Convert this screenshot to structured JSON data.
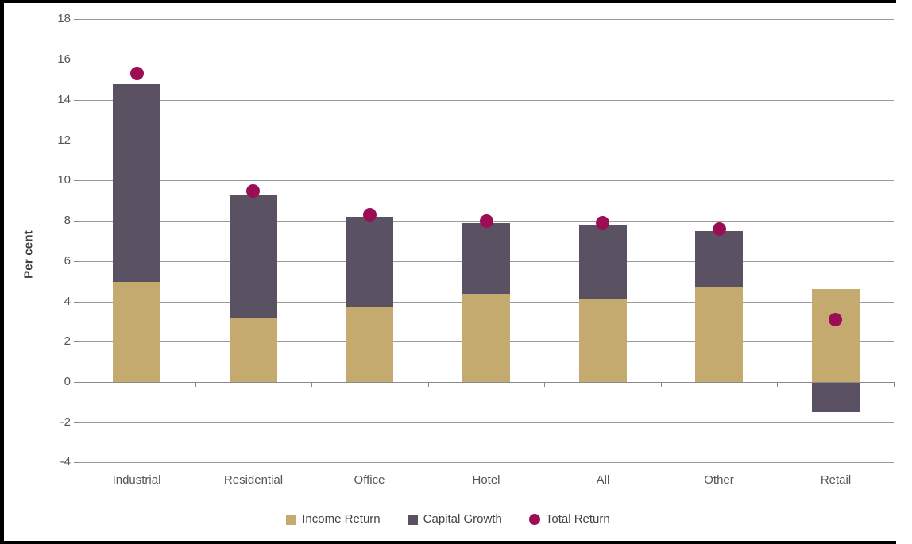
{
  "figure": {
    "y_axis_title": "Per cent",
    "border_color": "#000000",
    "background_color": "#ffffff",
    "gridline_color": "#9c9c9c",
    "axis_line_color": "#898989",
    "tick_label_color": "#555555"
  },
  "chart_data": {
    "type": "bar",
    "subtype": "stacked-bars-with-point-markers",
    "title": "",
    "xlabel": "",
    "ylabel": "Per cent",
    "categories": [
      "Industrial",
      "Residential",
      "Office",
      "Hotel",
      "All",
      "Other",
      "Retail"
    ],
    "series": [
      {
        "name": "Income Return",
        "type": "bar",
        "marker": "square",
        "color": "#C5AA70",
        "values": [
          5.0,
          3.2,
          3.7,
          4.4,
          4.1,
          4.7,
          4.6
        ]
      },
      {
        "name": "Capital Growth",
        "type": "bar",
        "marker": "square",
        "color": "#5A5163",
        "values": [
          9.8,
          6.1,
          4.5,
          3.5,
          3.7,
          2.8,
          -1.5
        ]
      },
      {
        "name": "Total Return",
        "type": "scatter",
        "marker": "circle",
        "color": "#9B0E55",
        "values": [
          15.3,
          9.5,
          8.3,
          8.0,
          7.9,
          7.6,
          3.1
        ]
      }
    ],
    "stacked_bar_tops": [
      14.8,
      9.3,
      8.2,
      7.9,
      7.8,
      7.5,
      -1.5
    ],
    "ylim": [
      -4,
      18
    ],
    "ytick_step": 2,
    "ytick_labels": [
      "18",
      "16",
      "14",
      "12",
      "10",
      "8",
      "6",
      "4",
      "2",
      "0",
      "-2",
      "-4"
    ],
    "grid": true,
    "legend_position": "bottom",
    "legend": [
      {
        "label": "Income Return",
        "marker": "square",
        "color": "#C5AA70"
      },
      {
        "label": "Capital Growth",
        "marker": "square",
        "color": "#5A5163"
      },
      {
        "label": "Total Return",
        "marker": "circle",
        "color": "#9B0E55"
      }
    ]
  }
}
